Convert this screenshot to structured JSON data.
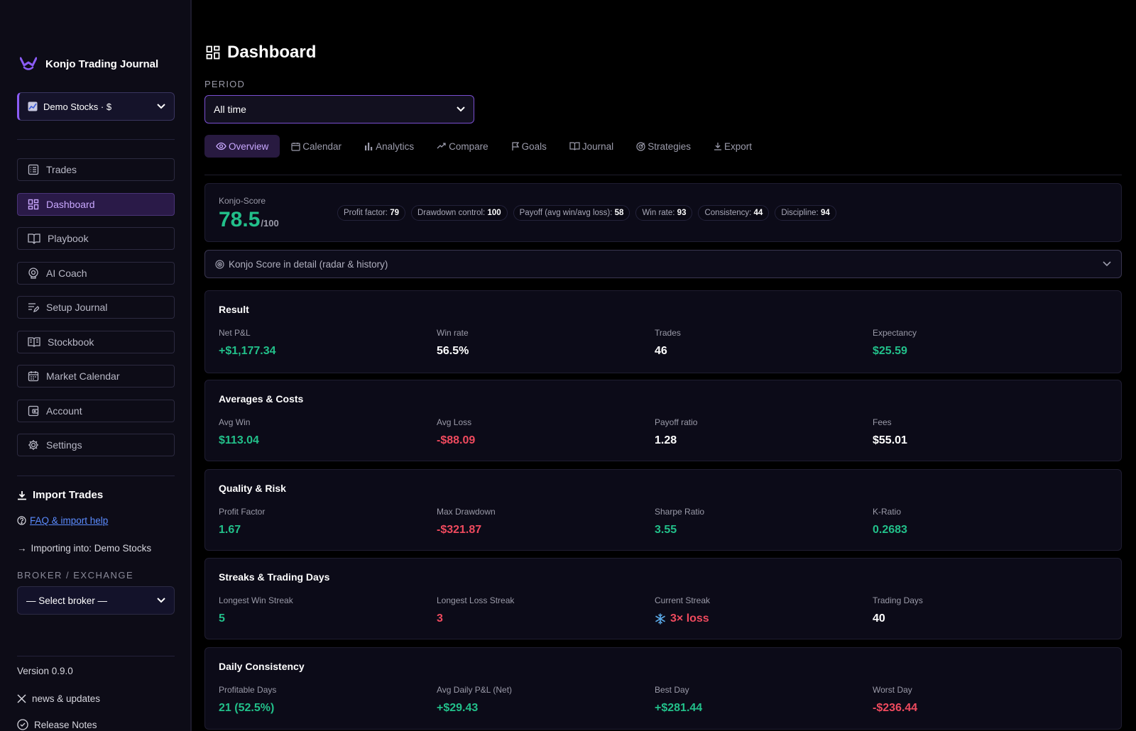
{
  "sidebar": {
    "brand": "Konjo Trading Journal",
    "account_select": "Demo Stocks · $",
    "nav": [
      {
        "label": "Trades",
        "icon": "list-icon",
        "active": false
      },
      {
        "label": "Dashboard",
        "icon": "grid-icon",
        "active": true
      },
      {
        "label": "Playbook",
        "icon": "book-open-icon",
        "active": false
      },
      {
        "label": "AI Coach",
        "icon": "brain-icon",
        "active": false
      },
      {
        "label": "Setup Journal",
        "icon": "edit-list-icon",
        "active": false
      },
      {
        "label": "Stockbook",
        "icon": "book-icon",
        "active": false
      },
      {
        "label": "Market Calendar",
        "icon": "calendar-icon",
        "active": false
      },
      {
        "label": "Account",
        "icon": "wallet-icon",
        "active": false
      },
      {
        "label": "Settings",
        "icon": "gear-icon",
        "active": false
      }
    ],
    "import_title": "Import Trades",
    "faq_link": "FAQ & import help",
    "importing_into": "Importing into: Demo Stocks",
    "broker_label": "BROKER / EXCHANGE",
    "broker_select": "— Select broker —",
    "version": "Version 0.9.0",
    "news": "news & updates",
    "release_notes": "Release Notes"
  },
  "main": {
    "title": "Dashboard",
    "period_label": "PERIOD",
    "period_value": "All time",
    "tabs": [
      "Overview",
      "Calendar",
      "Analytics",
      "Compare",
      "Goals",
      "Journal",
      "Strategies",
      "Export"
    ],
    "score": {
      "label": "Konjo-Score",
      "value": "78.5",
      "denominator": "/100",
      "chips": [
        {
          "label": "Profit factor:",
          "value": "79"
        },
        {
          "label": "Drawdown control:",
          "value": "100"
        },
        {
          "label": "Payoff (avg win/avg loss):",
          "value": "58"
        },
        {
          "label": "Win rate:",
          "value": "93"
        },
        {
          "label": "Consistency:",
          "value": "44"
        },
        {
          "label": "Discipline:",
          "value": "94"
        }
      ]
    },
    "detail_bar": "Konjo Score in detail (radar & history)",
    "sections": [
      {
        "title": "Result",
        "metrics": [
          {
            "label": "Net P&L",
            "value": "+$1,177.34",
            "color": "green"
          },
          {
            "label": "Win rate",
            "value": "56.5%",
            "color": "white"
          },
          {
            "label": "Trades",
            "value": "46",
            "color": "white"
          },
          {
            "label": "Expectancy",
            "value": "$25.59",
            "color": "green"
          }
        ]
      },
      {
        "title": "Averages & Costs",
        "metrics": [
          {
            "label": "Avg Win",
            "value": "$113.04",
            "color": "green"
          },
          {
            "label": "Avg Loss",
            "value": "-$88.09",
            "color": "red"
          },
          {
            "label": "Payoff ratio",
            "value": "1.28",
            "color": "white"
          },
          {
            "label": "Fees",
            "value": "$55.01",
            "color": "white"
          }
        ]
      },
      {
        "title": "Quality & Risk",
        "metrics": [
          {
            "label": "Profit Factor",
            "value": "1.67",
            "color": "green"
          },
          {
            "label": "Max Drawdown",
            "value": "-$321.87",
            "color": "red"
          },
          {
            "label": "Sharpe Ratio",
            "value": "3.55",
            "color": "green"
          },
          {
            "label": "K-Ratio",
            "value": "0.2683",
            "color": "green"
          }
        ]
      },
      {
        "title": "Streaks & Trading Days",
        "metrics": [
          {
            "label": "Longest Win Streak",
            "value": "5",
            "color": "green"
          },
          {
            "label": "Longest Loss Streak",
            "value": "3",
            "color": "red"
          },
          {
            "label": "Current Streak",
            "value": "3× loss",
            "color": "red",
            "icon": "snowflake-icon"
          },
          {
            "label": "Trading Days",
            "value": "40",
            "color": "white"
          }
        ]
      },
      {
        "title": "Daily Consistency",
        "metrics": [
          {
            "label": "Profitable Days",
            "value": "21 (52.5%)",
            "color": "green"
          },
          {
            "label": "Avg Daily P&L (Net)",
            "value": "+$29.43",
            "color": "green"
          },
          {
            "label": "Best Day",
            "value": "+$281.44",
            "color": "green"
          },
          {
            "label": "Worst Day",
            "value": "-$236.44",
            "color": "red"
          }
        ]
      }
    ]
  },
  "colors": {
    "accent": "#8b5cf6",
    "positive": "#22c08a",
    "negative": "#ef4a5e",
    "background": "#000000",
    "card": "#0c0b18"
  }
}
